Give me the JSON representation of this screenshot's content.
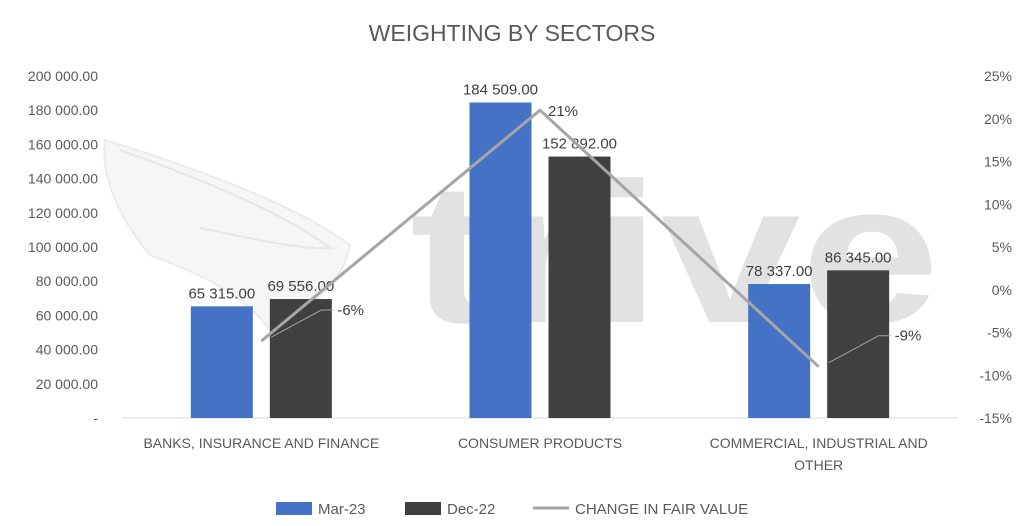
{
  "watermark": "trive",
  "chart_data": {
    "type": "bar",
    "title": "WEIGHTING BY SECTORS",
    "categories": [
      "BANKS, INSURANCE AND FINANCE",
      "CONSUMER PRODUCTS",
      "COMMERCIAL, INDUSTRIAL AND OTHER"
    ],
    "series": [
      {
        "name": "Mar-23",
        "kind": "bar",
        "axis": "left",
        "color": "#4472c4",
        "values": [
          65315,
          184509,
          78337
        ],
        "labels": [
          "65 315.00",
          "184 509.00",
          "78 337.00"
        ]
      },
      {
        "name": "Dec-22",
        "kind": "bar",
        "axis": "left",
        "color": "#404040",
        "values": [
          69556,
          152892,
          86345
        ],
        "labels": [
          "69 556.00",
          "152 892.00",
          "86 345.00"
        ]
      },
      {
        "name": "CHANGE IN FAIR VALUE",
        "kind": "line",
        "axis": "right",
        "color": "#a5a5a5",
        "values": [
          -6,
          21,
          -9
        ],
        "labels": [
          "-6%",
          "21%",
          "-9%"
        ]
      }
    ],
    "ylim": [
      0,
      200000
    ],
    "y2lim": [
      -15,
      25
    ],
    "yticks": [
      "-",
      "20 000.00",
      "40 000.00",
      "60 000.00",
      "80 000.00",
      "100 000.00",
      "120 000.00",
      "140 000.00",
      "160 000.00",
      "180 000.00",
      "200 000.00"
    ],
    "y2ticks": [
      "-15%",
      "-10%",
      "-5%",
      "0%",
      "5%",
      "10%",
      "15%",
      "20%",
      "25%"
    ],
    "grid": false,
    "legend": "bottom"
  }
}
